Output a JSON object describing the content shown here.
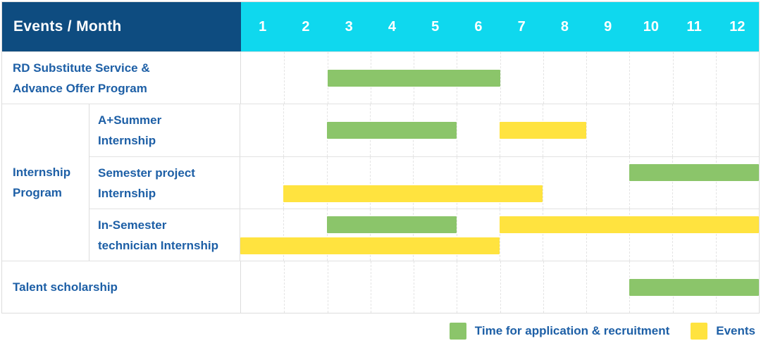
{
  "header": {
    "title": "Events / Month"
  },
  "colors": {
    "navy": "#0E4C80",
    "cyan": "#0FD8EE",
    "green": "#8BC56A",
    "yellow": "#FFE33F",
    "text_blue": "#1D5FA6"
  },
  "chart_data": {
    "type": "bar",
    "subtype": "gantt-schedule",
    "title": "Events / Month",
    "x_axis": {
      "label": "Month",
      "range": [
        1,
        12
      ],
      "grid": "dashed-vertical"
    },
    "months": [
      1,
      2,
      3,
      4,
      5,
      6,
      7,
      8,
      9,
      10,
      11,
      12
    ],
    "legend_position": "bottom-right",
    "legend": [
      {
        "series": "application_recruitment",
        "label": "Time for application & recruitment",
        "color": "#8BC56A"
      },
      {
        "series": "events",
        "label": "Events",
        "color": "#FFE33F"
      }
    ],
    "group_label_lines": [
      "Internship",
      "Program"
    ],
    "rows": [
      {
        "id": "rd-substitute-advance-offer",
        "group": null,
        "label_lines": [
          "RD Substitute Service &",
          "Advance Offer Program"
        ],
        "lanes": [
          [
            {
              "series": "application_recruitment",
              "start_month": 3,
              "end_month": 6
            }
          ]
        ]
      },
      {
        "id": "a-plus-summer-internship",
        "group": "Internship Program",
        "label_lines": [
          "A+Summer",
          "Internship"
        ],
        "lanes": [
          [
            {
              "series": "application_recruitment",
              "start_month": 3,
              "end_month": 5
            },
            {
              "series": "events",
              "start_month": 7,
              "end_month": 8
            }
          ]
        ]
      },
      {
        "id": "semester-project-internship",
        "group": "Internship Program",
        "label_lines": [
          "Semester project",
          "Internship"
        ],
        "lanes": [
          [
            {
              "series": "application_recruitment",
              "start_month": 10,
              "end_month": 12
            }
          ],
          [
            {
              "series": "events",
              "start_month": 2,
              "end_month": 7
            }
          ]
        ]
      },
      {
        "id": "in-semester-technician-internship",
        "group": "Internship Program",
        "label_lines": [
          "In-Semester",
          "technician Internship"
        ],
        "lanes": [
          [
            {
              "series": "application_recruitment",
              "start_month": 3,
              "end_month": 5
            },
            {
              "series": "events",
              "start_month": 7,
              "end_month": 12
            }
          ],
          [
            {
              "series": "events",
              "start_month": 1,
              "end_month": 6
            }
          ]
        ]
      },
      {
        "id": "talent-scholarship",
        "group": null,
        "label_lines": [
          "Talent scholarship"
        ],
        "lanes": [
          [
            {
              "series": "application_recruitment",
              "start_month": 10,
              "end_month": 12
            }
          ]
        ]
      }
    ]
  }
}
